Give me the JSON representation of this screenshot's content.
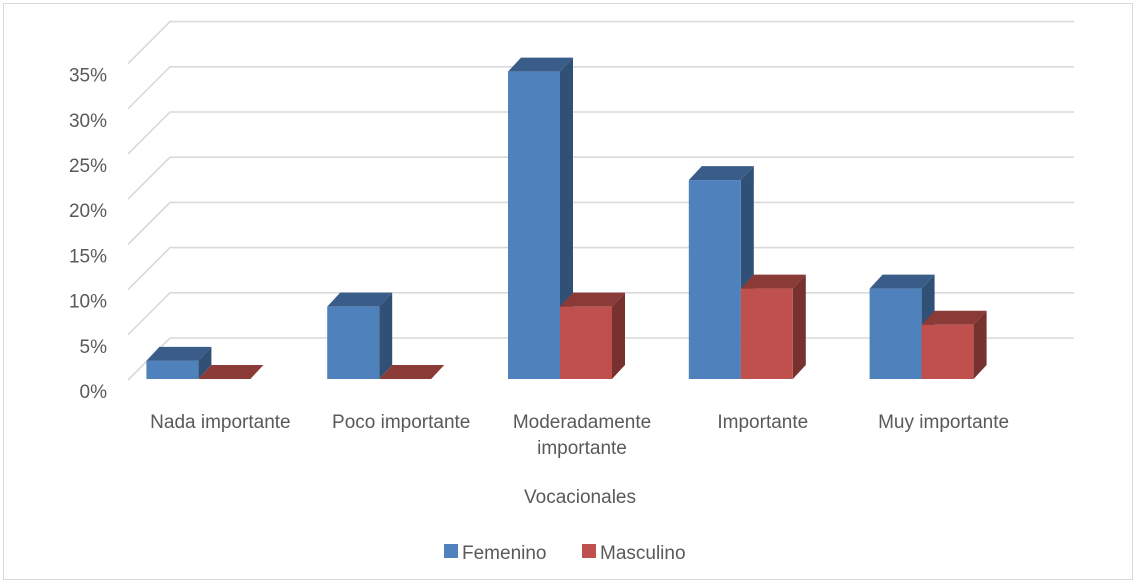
{
  "chart_data": {
    "type": "bar",
    "style": "3d-clustered-column",
    "categories": [
      [
        "Nada importante"
      ],
      [
        "Poco importante"
      ],
      [
        "Moderadamente",
        "importante"
      ],
      [
        "Importante"
      ],
      [
        "Muy importante"
      ]
    ],
    "series": [
      {
        "name": "Femenino",
        "values": [
          0.02,
          0.08,
          0.34,
          0.22,
          0.1
        ],
        "color": "#4F81BD"
      },
      {
        "name": "Masculino",
        "values": [
          0.0,
          0.0,
          0.08,
          0.1,
          0.06
        ],
        "color": "#C0504D"
      }
    ],
    "yticks": [
      "0%",
      "5%",
      "10%",
      "15%",
      "20%",
      "25%",
      "30%",
      "35%"
    ],
    "ylim": [
      0,
      0.35
    ],
    "xlabel": "Vocacionales",
    "ylabel": "",
    "grid": true,
    "legend_position": "bottom"
  }
}
